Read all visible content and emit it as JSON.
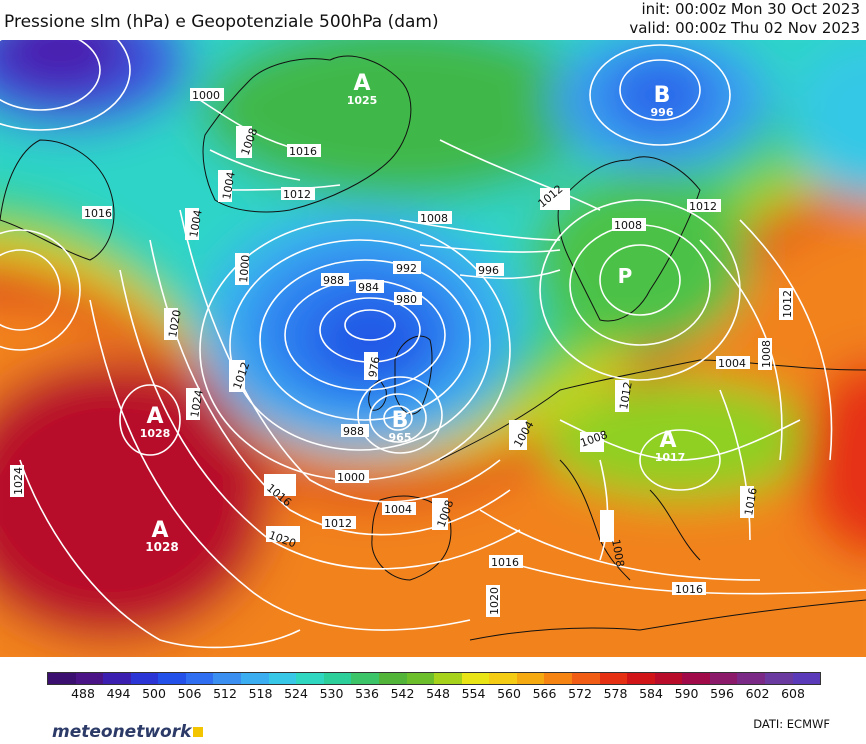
{
  "header": {
    "title": "Pressione slm (hPa) e Geopotenziale 500hPa (dam)",
    "init": "init: 00:00z Mon 30 Oct 2023",
    "valid": "valid: 00:00z Thu 02 Nov 2023"
  },
  "map": {
    "isobar_labels": [
      "1000",
      "1008",
      "1016",
      "1004",
      "1012",
      "1016",
      "1004",
      "1000",
      "1008",
      "992",
      "988",
      "984",
      "980",
      "996",
      "976",
      "988",
      "1000",
      "1012",
      "1020",
      "1024",
      "1024",
      "1016",
      "1020",
      "1012",
      "1004",
      "1008",
      "1016",
      "1020",
      "1004",
      "1008",
      "1012",
      "1008",
      "1016",
      "1004",
      "1012",
      "1016",
      "1008",
      "1012",
      "1008",
      "1012"
    ],
    "pressure_centers": [
      {
        "type": "A",
        "value": "1025"
      },
      {
        "type": "B",
        "value": "996"
      },
      {
        "type": "P",
        "value": ""
      },
      {
        "type": "A",
        "value": "1028"
      },
      {
        "type": "B",
        "value": "965"
      },
      {
        "type": "A",
        "value": "1028"
      },
      {
        "type": "A",
        "value": "1017"
      }
    ]
  },
  "legend": {
    "ticks": [
      "488",
      "494",
      "500",
      "506",
      "512",
      "518",
      "524",
      "530",
      "536",
      "542",
      "548",
      "554",
      "560",
      "566",
      "572",
      "578",
      "584",
      "590",
      "596",
      "602",
      "608"
    ],
    "colors": [
      "#3b0f70",
      "#4a1486",
      "#3a1fb0",
      "#2b35d6",
      "#2450ea",
      "#2f6ef0",
      "#3a8ff0",
      "#3aaef0",
      "#36c8e6",
      "#2fd6c0",
      "#2ccf9a",
      "#3cc468",
      "#52b53a",
      "#6cbf2a",
      "#a6d21c",
      "#e8e416",
      "#f4cc14",
      "#f6aa12",
      "#f58412",
      "#f05c14",
      "#e63014",
      "#d01418",
      "#b80c2a",
      "#a00a48",
      "#8c1a6a",
      "#7a2a86",
      "#6a3aa0",
      "#5a3ab8"
    ]
  },
  "footer": {
    "logo": "meteonetwork",
    "source": "DATI: ECMWF"
  }
}
